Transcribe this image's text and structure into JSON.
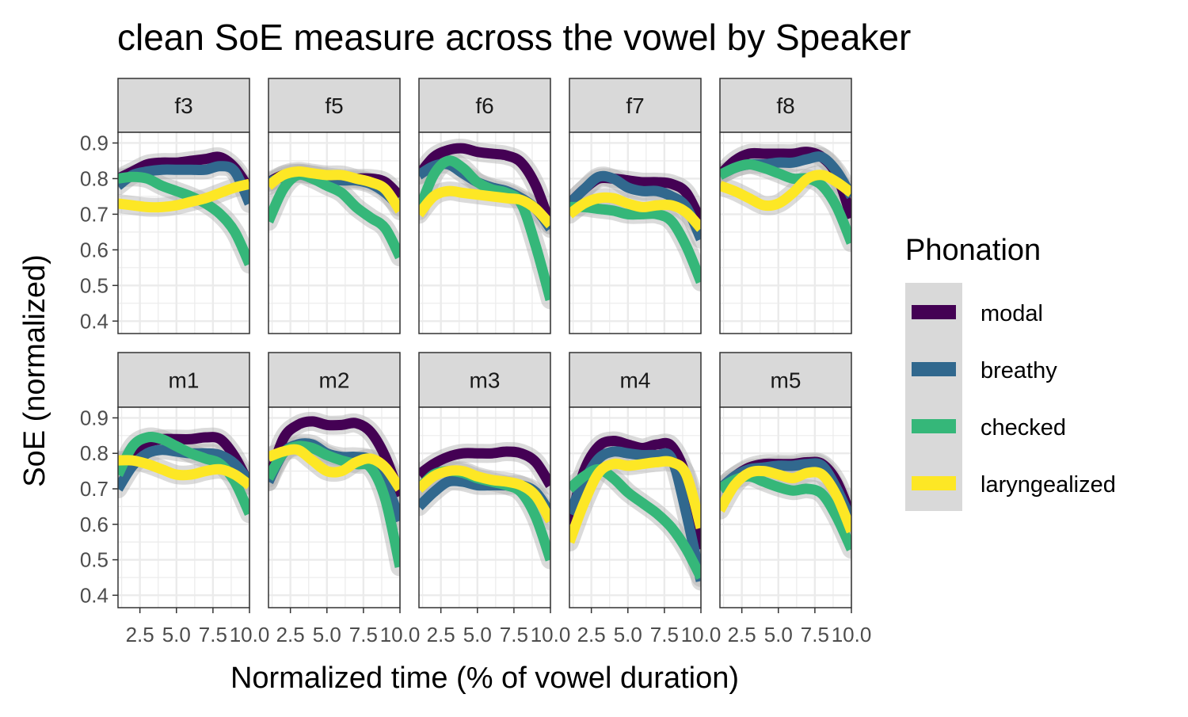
{
  "chart_data": {
    "type": "line",
    "title": "clean SoE measure across the vowel by Speaker",
    "xlabel": "Normalized time (% of vowel duration)",
    "ylabel": "SoE (normalized)",
    "xlim": [
      1,
      10
    ],
    "ylim": [
      0.365,
      0.93
    ],
    "x_ticks": [
      2.5,
      5.0,
      7.5,
      10.0
    ],
    "x_tick_labels": [
      "2.5",
      "5.0",
      "7.5",
      "10.0"
    ],
    "y_ticks": [
      0.4,
      0.5,
      0.6,
      0.7,
      0.8,
      0.9
    ],
    "y_tick_labels": [
      "0.4",
      "0.5",
      "0.6",
      "0.7",
      "0.8",
      "0.9"
    ],
    "grid": true,
    "legend": {
      "title": "Phonation",
      "position": "right",
      "entries": [
        {
          "name": "modal",
          "color": "#440154"
        },
        {
          "name": "breathy",
          "color": "#31688e"
        },
        {
          "name": "checked",
          "color": "#35b779"
        },
        {
          "name": "laryngealized",
          "color": "#fde725"
        }
      ]
    },
    "x": [
      1,
      2,
      3,
      4,
      5,
      6,
      7,
      8,
      9,
      10
    ],
    "panels": [
      {
        "label": "f3",
        "series": [
          {
            "name": "modal",
            "values": [
              0.8,
              0.82,
              0.84,
              0.845,
              0.845,
              0.85,
              0.855,
              0.86,
              0.83,
              0.77
            ]
          },
          {
            "name": "breathy",
            "values": [
              0.78,
              0.81,
              0.82,
              0.825,
              0.825,
              0.825,
              0.825,
              0.835,
              0.82,
              0.73
            ]
          },
          {
            "name": "checked",
            "values": [
              0.8,
              0.805,
              0.8,
              0.78,
              0.765,
              0.75,
              0.73,
              0.7,
              0.65,
              0.56
            ]
          },
          {
            "name": "laryngealized",
            "values": [
              0.73,
              0.725,
              0.72,
              0.72,
              0.725,
              0.735,
              0.745,
              0.76,
              0.775,
              0.785
            ]
          }
        ]
      },
      {
        "label": "f5",
        "series": [
          {
            "name": "modal",
            "values": [
              0.79,
              0.81,
              0.815,
              0.81,
              0.805,
              0.8,
              0.8,
              0.8,
              0.79,
              0.75
            ]
          },
          {
            "name": "breathy",
            "values": [
              0.79,
              0.805,
              0.815,
              0.81,
              0.8,
              0.795,
              0.795,
              0.785,
              0.76,
              0.72
            ]
          },
          {
            "name": "checked",
            "values": [
              0.68,
              0.77,
              0.81,
              0.8,
              0.78,
              0.76,
              0.72,
              0.69,
              0.66,
              0.58
            ]
          },
          {
            "name": "laryngealized",
            "values": [
              0.78,
              0.81,
              0.82,
              0.815,
              0.81,
              0.81,
              0.8,
              0.79,
              0.77,
              0.71
            ]
          }
        ]
      },
      {
        "label": "f6",
        "series": [
          {
            "name": "modal",
            "values": [
              0.81,
              0.86,
              0.88,
              0.885,
              0.875,
              0.87,
              0.865,
              0.845,
              0.78,
              0.67
            ]
          },
          {
            "name": "breathy",
            "values": [
              0.81,
              0.835,
              0.84,
              0.815,
              0.79,
              0.775,
              0.765,
              0.745,
              0.715,
              0.66
            ]
          },
          {
            "name": "checked",
            "values": [
              0.71,
              0.81,
              0.85,
              0.83,
              0.79,
              0.77,
              0.76,
              0.73,
              0.61,
              0.46
            ]
          },
          {
            "name": "laryngealized",
            "values": [
              0.7,
              0.75,
              0.765,
              0.76,
              0.755,
              0.75,
              0.745,
              0.74,
              0.715,
              0.67
            ]
          }
        ]
      },
      {
        "label": "f7",
        "series": [
          {
            "name": "modal",
            "values": [
              0.73,
              0.77,
              0.8,
              0.8,
              0.795,
              0.79,
              0.79,
              0.785,
              0.76,
              0.68
            ]
          },
          {
            "name": "breathy",
            "values": [
              0.73,
              0.77,
              0.805,
              0.8,
              0.775,
              0.765,
              0.765,
              0.75,
              0.72,
              0.63
            ]
          },
          {
            "name": "checked",
            "values": [
              0.72,
              0.72,
              0.715,
              0.71,
              0.7,
              0.7,
              0.7,
              0.68,
              0.61,
              0.51
            ]
          },
          {
            "name": "laryngealized",
            "values": [
              0.7,
              0.73,
              0.745,
              0.745,
              0.73,
              0.72,
              0.725,
              0.725,
              0.705,
              0.66
            ]
          }
        ]
      },
      {
        "label": "f8",
        "series": [
          {
            "name": "modal",
            "values": [
              0.81,
              0.85,
              0.87,
              0.87,
              0.87,
              0.87,
              0.875,
              0.86,
              0.81,
              0.69
            ]
          },
          {
            "name": "breathy",
            "values": [
              0.81,
              0.83,
              0.84,
              0.84,
              0.845,
              0.845,
              0.855,
              0.86,
              0.82,
              0.75
            ]
          },
          {
            "name": "checked",
            "values": [
              0.81,
              0.83,
              0.84,
              0.83,
              0.815,
              0.8,
              0.8,
              0.78,
              0.72,
              0.62
            ]
          },
          {
            "name": "laryngealized",
            "values": [
              0.78,
              0.765,
              0.745,
              0.725,
              0.73,
              0.76,
              0.8,
              0.81,
              0.79,
              0.76
            ]
          }
        ]
      },
      {
        "label": "m1",
        "series": [
          {
            "name": "modal",
            "values": [
              0.75,
              0.8,
              0.83,
              0.84,
              0.84,
              0.84,
              0.845,
              0.84,
              0.79,
              0.71
            ]
          },
          {
            "name": "breathy",
            "values": [
              0.7,
              0.765,
              0.8,
              0.81,
              0.805,
              0.8,
              0.8,
              0.795,
              0.77,
              0.72
            ]
          },
          {
            "name": "checked",
            "values": [
              0.74,
              0.82,
              0.845,
              0.84,
              0.82,
              0.8,
              0.785,
              0.77,
              0.72,
              0.63
            ]
          },
          {
            "name": "laryngealized",
            "values": [
              0.78,
              0.78,
              0.77,
              0.755,
              0.74,
              0.74,
              0.75,
              0.755,
              0.74,
              0.71
            ]
          }
        ]
      },
      {
        "label": "m2",
        "series": [
          {
            "name": "modal",
            "values": [
              0.72,
              0.84,
              0.88,
              0.89,
              0.88,
              0.88,
              0.885,
              0.86,
              0.79,
              0.68
            ]
          },
          {
            "name": "breathy",
            "values": [
              0.72,
              0.8,
              0.825,
              0.825,
              0.8,
              0.79,
              0.79,
              0.78,
              0.72,
              0.61
            ]
          },
          {
            "name": "checked",
            "values": [
              0.73,
              0.8,
              0.82,
              0.815,
              0.795,
              0.78,
              0.77,
              0.76,
              0.67,
              0.48
            ]
          },
          {
            "name": "laryngealized",
            "values": [
              0.79,
              0.805,
              0.81,
              0.78,
              0.75,
              0.75,
              0.775,
              0.785,
              0.76,
              0.7
            ]
          }
        ]
      },
      {
        "label": "m3",
        "series": [
          {
            "name": "modal",
            "values": [
              0.74,
              0.77,
              0.79,
              0.8,
              0.8,
              0.8,
              0.805,
              0.8,
              0.775,
              0.71
            ]
          },
          {
            "name": "breathy",
            "values": [
              0.65,
              0.69,
              0.72,
              0.72,
              0.71,
              0.71,
              0.71,
              0.71,
              0.69,
              0.63
            ]
          },
          {
            "name": "checked",
            "values": [
              0.7,
              0.74,
              0.75,
              0.745,
              0.73,
              0.72,
              0.71,
              0.69,
              0.62,
              0.5
            ]
          },
          {
            "name": "laryngealized",
            "values": [
              0.7,
              0.735,
              0.75,
              0.75,
              0.735,
              0.725,
              0.72,
              0.71,
              0.68,
              0.61
            ]
          }
        ]
      },
      {
        "label": "m4",
        "series": [
          {
            "name": "modal",
            "values": [
              0.6,
              0.75,
              0.82,
              0.835,
              0.825,
              0.815,
              0.825,
              0.82,
              0.73,
              0.53
            ]
          },
          {
            "name": "breathy",
            "values": [
              0.63,
              0.72,
              0.785,
              0.805,
              0.8,
              0.795,
              0.795,
              0.785,
              0.63,
              0.44
            ]
          },
          {
            "name": "checked",
            "values": [
              0.7,
              0.735,
              0.755,
              0.73,
              0.69,
              0.66,
              0.63,
              0.59,
              0.53,
              0.45
            ]
          },
          {
            "name": "laryngealized",
            "values": [
              0.55,
              0.66,
              0.745,
              0.77,
              0.765,
              0.77,
              0.775,
              0.775,
              0.74,
              0.59
            ]
          }
        ]
      },
      {
        "label": "m5",
        "series": [
          {
            "name": "modal",
            "values": [
              0.7,
              0.735,
              0.76,
              0.77,
              0.77,
              0.77,
              0.775,
              0.77,
              0.72,
              0.62
            ]
          },
          {
            "name": "breathy",
            "values": [
              0.7,
              0.735,
              0.755,
              0.76,
              0.765,
              0.765,
              0.77,
              0.765,
              0.7,
              0.61
            ]
          },
          {
            "name": "checked",
            "values": [
              0.7,
              0.725,
              0.735,
              0.72,
              0.705,
              0.695,
              0.7,
              0.685,
              0.62,
              0.53
            ]
          },
          {
            "name": "laryngealized",
            "values": [
              0.64,
              0.71,
              0.745,
              0.75,
              0.74,
              0.73,
              0.745,
              0.74,
              0.68,
              0.58
            ]
          }
        ]
      }
    ]
  }
}
